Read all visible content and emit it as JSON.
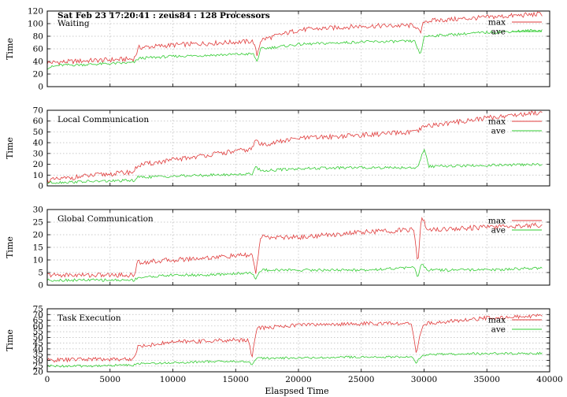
{
  "header": "Sat Feb 23 17:20:41 : zeus84 : 128 Processors",
  "chart_data": [
    {
      "type": "line",
      "title": "Waiting",
      "xlabel": "",
      "ylabel": "Time",
      "xlim": [
        0,
        40000
      ],
      "ylim": [
        0,
        120
      ],
      "yticks": [
        0,
        20,
        40,
        60,
        80,
        100,
        120
      ],
      "grid": true,
      "legend": "top-right",
      "series": [
        {
          "name": "max",
          "color": "#e03c3c",
          "x": [
            0,
            1000,
            3000,
            6900,
            7300,
            10000,
            13000,
            16400,
            16700,
            17000,
            20000,
            25000,
            29300,
            29700,
            30000,
            35000,
            40000
          ],
          "y": [
            38,
            39,
            41,
            44,
            62,
            66,
            69,
            72,
            50,
            74,
            90,
            96,
            97,
            84,
            104,
            110,
            116
          ]
        },
        {
          "name": "ave",
          "color": "#33cc33",
          "x": [
            0,
            1000,
            3000,
            6900,
            7300,
            10000,
            13000,
            16400,
            16700,
            17000,
            20000,
            25000,
            29300,
            29700,
            30000,
            35000,
            40000
          ],
          "y": [
            30,
            34,
            35,
            38,
            45,
            48,
            50,
            52,
            40,
            60,
            67,
            71,
            72,
            48,
            80,
            86,
            90
          ]
        }
      ]
    },
    {
      "type": "line",
      "title": "Local Communication",
      "xlabel": "",
      "ylabel": "Time",
      "xlim": [
        0,
        40000
      ],
      "ylim": [
        0,
        70
      ],
      "yticks": [
        0,
        10,
        20,
        30,
        40,
        50,
        60,
        70
      ],
      "grid": true,
      "legend": "top-right",
      "series": [
        {
          "name": "max",
          "color": "#e03c3c",
          "x": [
            0,
            3000,
            6900,
            7200,
            10000,
            13000,
            16300,
            16600,
            17000,
            20000,
            25000,
            29500,
            30000,
            35000,
            40000
          ],
          "y": [
            5,
            9,
            13,
            19,
            24,
            29,
            34,
            43,
            38,
            44,
            47,
            50,
            55,
            63,
            69
          ]
        },
        {
          "name": "ave",
          "color": "#33cc33",
          "x": [
            0,
            3000,
            6900,
            7200,
            10000,
            13000,
            16300,
            16600,
            17000,
            20000,
            25000,
            29500,
            30000,
            30400,
            35000,
            40000
          ],
          "y": [
            3,
            4,
            5,
            8,
            9,
            10,
            11,
            18,
            14,
            16,
            17,
            17,
            34,
            18,
            19,
            20
          ]
        }
      ]
    },
    {
      "type": "line",
      "title": "Global Communication",
      "xlabel": "",
      "ylabel": "Time",
      "xlim": [
        0,
        40000
      ],
      "ylim": [
        0,
        30
      ],
      "yticks": [
        0,
        5,
        10,
        15,
        20,
        25,
        30
      ],
      "grid": true,
      "legend": "top-right",
      "series": [
        {
          "name": "max",
          "color": "#e03c3c",
          "x": [
            0,
            3000,
            6900,
            7200,
            10000,
            13000,
            16300,
            16600,
            17000,
            20000,
            25000,
            29200,
            29500,
            29800,
            30200,
            35000,
            40000
          ],
          "y": [
            4,
            4,
            4,
            9,
            10,
            11,
            12,
            5,
            19,
            19,
            21,
            22,
            8,
            28,
            22,
            23,
            24
          ]
        },
        {
          "name": "ave",
          "color": "#33cc33",
          "x": [
            0,
            3000,
            6900,
            7200,
            10000,
            13000,
            16300,
            16600,
            17000,
            20000,
            25000,
            29200,
            29500,
            29800,
            30200,
            35000,
            40000
          ],
          "y": [
            2,
            2,
            2,
            3,
            4,
            4,
            5,
            2,
            6,
            6,
            6,
            7,
            3,
            9,
            6,
            6,
            7
          ]
        }
      ]
    },
    {
      "type": "line",
      "title": "Task Execution",
      "xlabel": "Elaspsed Time",
      "ylabel": "Time",
      "xlim": [
        0,
        40000
      ],
      "ylim": [
        20,
        75
      ],
      "yticks": [
        20,
        25,
        30,
        35,
        40,
        45,
        50,
        55,
        60,
        65,
        70,
        75
      ],
      "xticks": [
        0,
        5000,
        10000,
        15000,
        20000,
        25000,
        30000,
        35000,
        40000
      ],
      "grid": true,
      "legend": "top-right",
      "series": [
        {
          "name": "max",
          "color": "#e03c3c",
          "x": [
            0,
            3000,
            6900,
            7200,
            10000,
            13000,
            16000,
            16300,
            16700,
            20000,
            25000,
            29000,
            29400,
            29800,
            30200,
            35000,
            40000
          ],
          "y": [
            30,
            31,
            31,
            42,
            46,
            47,
            48,
            33,
            58,
            61,
            62,
            62,
            36,
            58,
            62,
            67,
            69
          ]
        },
        {
          "name": "ave",
          "color": "#33cc33",
          "x": [
            0,
            3000,
            6900,
            7200,
            10000,
            13000,
            16000,
            16300,
            16700,
            20000,
            25000,
            29000,
            29400,
            29800,
            30200,
            35000,
            40000
          ],
          "y": [
            25,
            25,
            26,
            27,
            28,
            29,
            29,
            26,
            32,
            32,
            33,
            33,
            28,
            34,
            35,
            36,
            36
          ]
        }
      ]
    }
  ]
}
